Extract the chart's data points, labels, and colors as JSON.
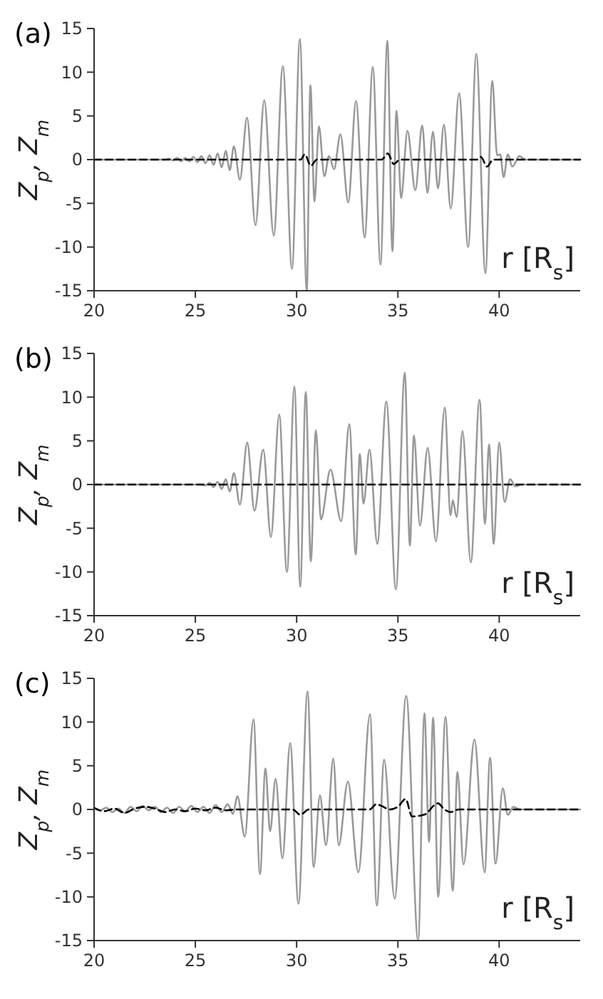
{
  "chart_data": [
    {
      "type": "line",
      "title": "(a)",
      "ylabel": "Z$_{p}$, Z$_{m}$",
      "xlabel": "r [R$_{s}$]",
      "xlim": [
        20,
        44
      ],
      "ylim": [
        -15,
        15
      ],
      "xticks": [
        20,
        25,
        30,
        35,
        40
      ],
      "yticks": [
        -15,
        -10,
        -5,
        0,
        5,
        10,
        15
      ],
      "series": [
        {
          "color": "#999999",
          "line_style": "solid",
          "x": [
            20,
            23.5,
            23.7,
            23.9,
            24.1,
            24.3,
            24.5,
            24.7,
            24.9,
            25.1,
            25.3,
            25.5,
            25.7,
            25.9,
            26.1,
            26.3,
            26.5,
            26.7,
            26.9,
            27.2,
            27.55,
            27.97,
            28.4,
            28.87,
            29.32,
            29.77,
            30.16,
            30.5,
            30.68,
            30.88,
            31.1,
            31.37,
            31.6,
            31.85,
            32.16,
            32.55,
            32.93,
            33.36,
            33.76,
            34.14,
            34.48,
            34.73,
            34.93,
            35.16,
            35.47,
            35.86,
            36.2,
            36.46,
            36.73,
            36.98,
            37.27,
            37.61,
            38.02,
            38.47,
            38.87,
            39.32,
            39.66,
            39.9,
            40.05,
            40.22,
            40.43,
            40.65,
            41.0,
            41.3,
            44
          ],
          "values": [
            0,
            0,
            0.1,
            -0.1,
            0.2,
            -0.2,
            0.2,
            -0.2,
            0.3,
            -0.3,
            0.4,
            -0.4,
            0.5,
            -0.6,
            0.7,
            -0.9,
            1.0,
            -1.2,
            1.5,
            -2.3,
            4.8,
            -7.5,
            6.8,
            -8.7,
            10.7,
            -12.5,
            13.8,
            -15,
            8.5,
            -4.8,
            3.8,
            -1.9,
            0.4,
            -1.1,
            2.9,
            -4.9,
            6.7,
            -8.9,
            10.6,
            -12,
            13.6,
            -10.5,
            5.6,
            -4.4,
            3.3,
            -3.5,
            3.9,
            -3.8,
            3.2,
            -3.3,
            4.0,
            -5.6,
            7.6,
            -10,
            12.1,
            -13,
            9.0,
            0.5,
            0.6,
            -2,
            0.6,
            -0.8,
            0.4,
            0,
            0
          ]
        },
        {
          "color": "#000000",
          "line_style": "dashed",
          "x": [
            20,
            30.2,
            30.4,
            30.7,
            31.0,
            34.2,
            34.5,
            34.8,
            35.1,
            38.9,
            39.1,
            39.4,
            39.7,
            44
          ],
          "values": [
            0,
            0,
            0.6,
            -0.7,
            0,
            0,
            0.7,
            -0.5,
            0,
            0,
            0.3,
            -0.8,
            0,
            0
          ]
        }
      ]
    },
    {
      "type": "line",
      "title": "(b)",
      "ylabel": "Z$_{p}$, Z$_{m}$",
      "xlabel": "r [R$_{s}$]",
      "xlim": [
        20,
        44
      ],
      "ylim": [
        -15,
        15
      ],
      "xticks": [
        20,
        25,
        30,
        35,
        40
      ],
      "yticks": [
        -15,
        -10,
        -5,
        0,
        5,
        10,
        15
      ],
      "series": [
        {
          "color": "#999999",
          "line_style": "solid",
          "x": [
            20,
            25.3,
            25.5,
            25.7,
            25.9,
            26.1,
            26.3,
            26.5,
            26.7,
            26.9,
            27.2,
            27.56,
            27.92,
            28.35,
            28.73,
            29.14,
            29.52,
            29.89,
            30.18,
            30.45,
            30.7,
            30.95,
            31.2,
            31.67,
            32.2,
            32.6,
            32.92,
            33.12,
            33.3,
            33.6,
            33.98,
            34.43,
            34.9,
            35.34,
            35.59,
            35.79,
            36.09,
            36.47,
            36.88,
            37.31,
            37.6,
            37.71,
            37.9,
            38.19,
            38.6,
            39.03,
            39.3,
            39.5,
            39.73,
            40.0,
            40.27,
            40.54,
            40.81,
            41.1,
            44
          ],
          "values": [
            0,
            0,
            -0.1,
            0.2,
            -0.3,
            0.3,
            -0.5,
            0.6,
            -0.8,
            1.3,
            -2.3,
            4.8,
            -3.0,
            4.0,
            -6.0,
            8.0,
            -10,
            11.2,
            -11.7,
            10.6,
            -8.8,
            6.2,
            -4.0,
            1.7,
            -4.2,
            6.9,
            -8.0,
            3.5,
            -2.2,
            4.0,
            -6.8,
            9.5,
            -12,
            12.8,
            -7.0,
            5.6,
            -4.7,
            4.2,
            -6.5,
            8.8,
            -3.5,
            -1.8,
            -3.7,
            6.1,
            -8.9,
            9.7,
            -4.5,
            4.6,
            -6.8,
            4.8,
            -2.0,
            0.6,
            -0.2,
            0,
            0
          ]
        },
        {
          "color": "#000000",
          "line_style": "dashed",
          "x": [
            20,
            44
          ],
          "values": [
            0,
            0
          ]
        }
      ]
    },
    {
      "type": "line",
      "title": "(c)",
      "ylabel": "Z$_{p}$, Z$_{m}$",
      "xlabel": "r [R$_{s}$]",
      "xlim": [
        20,
        44
      ],
      "ylim": [
        -15,
        15
      ],
      "xticks": [
        20,
        25,
        30,
        35,
        40
      ],
      "yticks": [
        -15,
        -10,
        -5,
        0,
        5,
        10,
        15
      ],
      "series": [
        {
          "color": "#999999",
          "line_style": "solid",
          "x": [
            20,
            20.3,
            20.6,
            20.9,
            21.2,
            21.5,
            21.8,
            22.1,
            22.4,
            22.7,
            23.0,
            23.3,
            23.6,
            23.9,
            24.2,
            24.5,
            24.8,
            25.1,
            25.4,
            25.7,
            26.0,
            26.3,
            26.6,
            26.85,
            27.08,
            27.44,
            27.87,
            28.19,
            28.46,
            28.69,
            28.96,
            29.3,
            29.68,
            30.09,
            30.54,
            30.84,
            31.15,
            31.45,
            31.81,
            32.08,
            32.53,
            33.05,
            33.62,
            33.96,
            34.32,
            34.84,
            35.41,
            36.0,
            36.31,
            36.54,
            36.74,
            36.99,
            37.35,
            37.71,
            37.94,
            38.24,
            38.78,
            39.28,
            39.55,
            39.82,
            40.18,
            40.43,
            40.7,
            41.0,
            44
          ],
          "values": [
            0.2,
            -0.1,
            0.2,
            -0.3,
            0.1,
            -0.4,
            0.3,
            -0.2,
            0.4,
            -0.1,
            0.3,
            -0.3,
            0.2,
            -0.4,
            0.3,
            -0.2,
            0.4,
            -0.3,
            0.3,
            -0.4,
            0.5,
            -0.3,
            0.6,
            -0.5,
            1.5,
            -3.1,
            10.3,
            -7.4,
            4.7,
            -2.5,
            3.5,
            -5.6,
            7.6,
            -10.8,
            13.5,
            -6.6,
            1.6,
            -4.1,
            5.8,
            -4.1,
            3.2,
            -7.2,
            10.9,
            -11,
            5.7,
            -10.2,
            13,
            -15,
            11,
            -3.7,
            10.5,
            -10,
            10.6,
            -9.3,
            4.3,
            -6.3,
            8.0,
            -7.2,
            5.9,
            -6.2,
            2.4,
            -0.6,
            0.3,
            0,
            0
          ]
        },
        {
          "color": "#000000",
          "line_style": "dashed",
          "x": [
            20,
            20.5,
            21,
            21.5,
            22,
            22.5,
            23,
            23.5,
            24,
            24.5,
            25,
            25.5,
            26,
            26.5,
            27,
            29.8,
            30.18,
            30.6,
            33.6,
            33.94,
            34.2,
            34.6,
            35.0,
            35.38,
            35.7,
            36.3,
            36.97,
            37.3,
            37.6,
            38,
            44
          ],
          "values": [
            0.2,
            -0.2,
            0.1,
            -0.4,
            0.1,
            0.3,
            0.1,
            -0.3,
            0,
            -0.2,
            0.1,
            -0.1,
            0.2,
            -0.1,
            0,
            0,
            -0.6,
            0,
            0,
            0.6,
            0.4,
            0,
            0.3,
            1.2,
            -0.8,
            -0.6,
            0.7,
            0,
            -0.3,
            0,
            0
          ]
        }
      ]
    }
  ]
}
